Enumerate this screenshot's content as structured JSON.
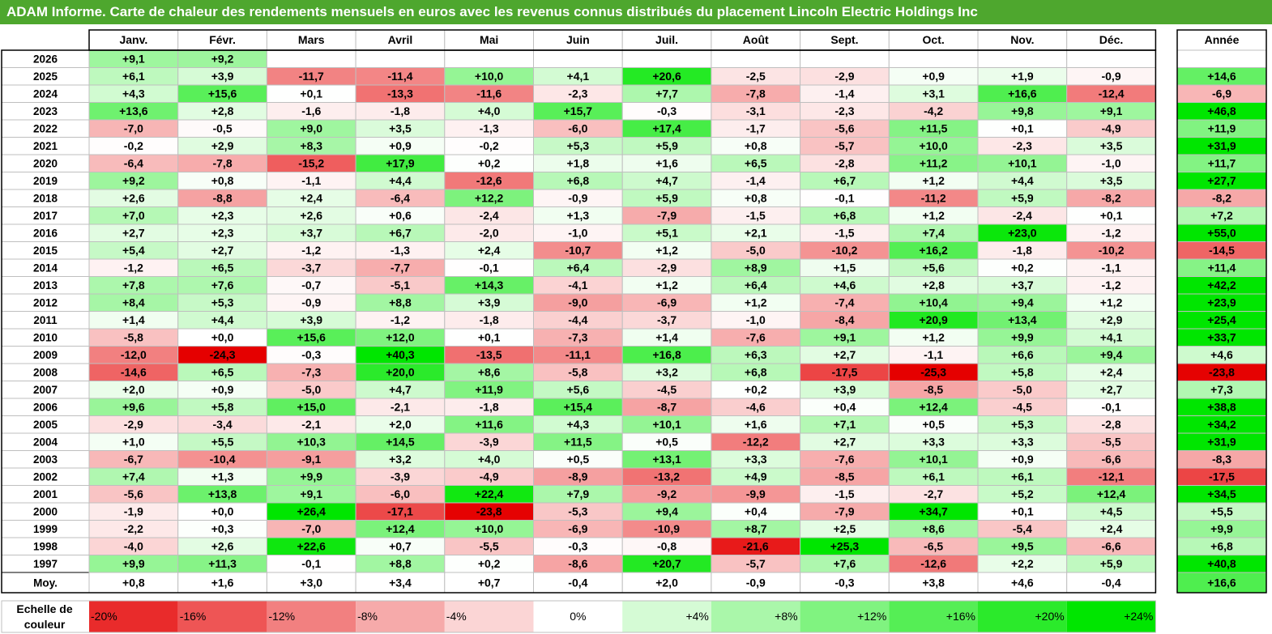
{
  "title": "ADAM Informe. Carte de chaleur des rendements mensuels en euros avec les revenus connus distribués du placement Lincoln Electric Holdings Inc",
  "chart_data": {
    "type": "heatmap",
    "months": [
      "Janv.",
      "Févr.",
      "Mars",
      "Avril",
      "Mai",
      "Juin",
      "Juil.",
      "Août",
      "Sept.",
      "Oct.",
      "Nov.",
      "Déc."
    ],
    "year_header": "Année",
    "rows": [
      {
        "year": "2026",
        "values": [
          "+9,1",
          "+9,2",
          null,
          null,
          null,
          null,
          null,
          null,
          null,
          null,
          null,
          null
        ],
        "annual": null
      },
      {
        "year": "2025",
        "values": [
          "+6,1",
          "+3,9",
          "-11,7",
          "-11,4",
          "+10,0",
          "+4,1",
          "+20,6",
          "-2,5",
          "-2,9",
          "+0,9",
          "+1,9",
          "-0,9"
        ],
        "annual": "+14,6"
      },
      {
        "year": "2024",
        "values": [
          "+4,3",
          "+15,6",
          "+0,1",
          "-13,3",
          "-11,6",
          "-2,3",
          "+7,7",
          "-7,8",
          "-1,4",
          "+3,1",
          "+16,6",
          "-12,4"
        ],
        "annual": "-6,9"
      },
      {
        "year": "2023",
        "values": [
          "+13,6",
          "+2,8",
          "-1,6",
          "-1,8",
          "+4,0",
          "+15,7",
          "-0,3",
          "-3,1",
          "-2,3",
          "-4,2",
          "+9,8",
          "+9,1"
        ],
        "annual": "+46,8"
      },
      {
        "year": "2022",
        "values": [
          "-7,0",
          "-0,5",
          "+9,0",
          "+3,5",
          "-1,3",
          "-6,0",
          "+17,4",
          "-1,7",
          "-5,6",
          "+11,5",
          "+0,1",
          "-4,9"
        ],
        "annual": "+11,9"
      },
      {
        "year": "2021",
        "values": [
          "-0,2",
          "+2,9",
          "+8,3",
          "+0,9",
          "-0,2",
          "+5,3",
          "+5,9",
          "+0,8",
          "-5,7",
          "+10,0",
          "-2,3",
          "+3,5"
        ],
        "annual": "+31,9"
      },
      {
        "year": "2020",
        "values": [
          "-6,4",
          "-7,8",
          "-15,2",
          "+17,9",
          "+0,2",
          "+1,8",
          "+1,6",
          "+6,5",
          "-2,8",
          "+11,2",
          "+10,1",
          "-1,0"
        ],
        "annual": "+11,7"
      },
      {
        "year": "2019",
        "values": [
          "+9,2",
          "+0,8",
          "-1,1",
          "+4,4",
          "-12,6",
          "+6,8",
          "+4,7",
          "-1,4",
          "+6,7",
          "+1,2",
          "+4,4",
          "+3,5"
        ],
        "annual": "+27,7"
      },
      {
        "year": "2018",
        "values": [
          "+2,6",
          "-8,8",
          "+2,4",
          "-6,4",
          "+12,2",
          "-0,9",
          "+5,9",
          "+0,8",
          "-0,1",
          "-11,2",
          "+5,9",
          "-8,2"
        ],
        "annual": "-8,2"
      },
      {
        "year": "2017",
        "values": [
          "+7,0",
          "+2,3",
          "+2,6",
          "+0,6",
          "-2,4",
          "+1,3",
          "-7,9",
          "-1,5",
          "+6,8",
          "+1,2",
          "-2,4",
          "+0,1"
        ],
        "annual": "+7,2"
      },
      {
        "year": "2016",
        "values": [
          "+2,7",
          "+2,3",
          "+3,7",
          "+6,7",
          "-2,0",
          "-1,0",
          "+5,1",
          "+2,1",
          "-1,5",
          "+7,4",
          "+23,0",
          "-1,2"
        ],
        "annual": "+55,0"
      },
      {
        "year": "2015",
        "values": [
          "+5,4",
          "+2,7",
          "-1,2",
          "-1,3",
          "+2,4",
          "-10,7",
          "+1,2",
          "-5,0",
          "-10,2",
          "+16,2",
          "-1,8",
          "-10,2"
        ],
        "annual": "-14,5"
      },
      {
        "year": "2014",
        "values": [
          "-1,2",
          "+6,5",
          "-3,7",
          "-7,7",
          "-0,1",
          "+6,4",
          "-2,9",
          "+8,9",
          "+1,5",
          "+5,6",
          "+0,2",
          "-1,1"
        ],
        "annual": "+11,4"
      },
      {
        "year": "2013",
        "values": [
          "+7,8",
          "+7,6",
          "-0,7",
          "-5,1",
          "+14,3",
          "-4,1",
          "+1,2",
          "+6,4",
          "+4,6",
          "+2,8",
          "+3,7",
          "-1,2"
        ],
        "annual": "+42,2"
      },
      {
        "year": "2012",
        "values": [
          "+8,4",
          "+5,3",
          "-0,9",
          "+8,8",
          "+3,9",
          "-9,0",
          "-6,9",
          "+1,2",
          "-7,4",
          "+10,4",
          "+9,4",
          "+1,2"
        ],
        "annual": "+23,9"
      },
      {
        "year": "2011",
        "values": [
          "+1,4",
          "+4,4",
          "+3,9",
          "-1,2",
          "-1,8",
          "-4,4",
          "-3,7",
          "-1,0",
          "-8,4",
          "+20,9",
          "+13,4",
          "+2,9"
        ],
        "annual": "+25,4"
      },
      {
        "year": "2010",
        "values": [
          "-5,8",
          "+0,0",
          "+15,6",
          "+12,0",
          "+0,1",
          "-7,3",
          "+1,4",
          "-7,6",
          "+9,1",
          "+1,2",
          "+9,9",
          "+4,1"
        ],
        "annual": "+33,7"
      },
      {
        "year": "2009",
        "values": [
          "-12,0",
          "-24,3",
          "-0,3",
          "+40,3",
          "-13,5",
          "-11,1",
          "+16,8",
          "+6,3",
          "+2,7",
          "-1,1",
          "+6,6",
          "+9,4"
        ],
        "annual": "+4,6"
      },
      {
        "year": "2008",
        "values": [
          "-14,6",
          "+6,5",
          "-7,3",
          "+20,0",
          "+8,6",
          "-5,8",
          "+3,2",
          "+6,8",
          "-17,5",
          "-25,3",
          "+5,8",
          "+2,4"
        ],
        "annual": "-23,8"
      },
      {
        "year": "2007",
        "values": [
          "+2,0",
          "+0,9",
          "-5,0",
          "+4,7",
          "+11,9",
          "+5,6",
          "-4,5",
          "+0,2",
          "+3,9",
          "-8,5",
          "-5,0",
          "+2,7"
        ],
        "annual": "+7,3"
      },
      {
        "year": "2006",
        "values": [
          "+9,6",
          "+5,8",
          "+15,0",
          "-2,1",
          "-1,8",
          "+15,4",
          "-8,7",
          "-4,6",
          "+0,4",
          "+12,4",
          "-4,5",
          "-0,1"
        ],
        "annual": "+38,8"
      },
      {
        "year": "2005",
        "values": [
          "-2,9",
          "-3,4",
          "-2,1",
          "+2,0",
          "+11,6",
          "+4,3",
          "+10,1",
          "+1,6",
          "+7,1",
          "+0,5",
          "+5,3",
          "-2,8"
        ],
        "annual": "+34,2"
      },
      {
        "year": "2004",
        "values": [
          "+1,0",
          "+5,5",
          "+10,3",
          "+14,5",
          "-3,9",
          "+11,5",
          "+0,5",
          "-12,2",
          "+2,7",
          "+3,3",
          "+3,3",
          "-5,5"
        ],
        "annual": "+31,9"
      },
      {
        "year": "2003",
        "values": [
          "-6,7",
          "-10,4",
          "-9,1",
          "+3,2",
          "+4,0",
          "+0,5",
          "+13,1",
          "+3,3",
          "-7,6",
          "+10,1",
          "+0,9",
          "-6,6"
        ],
        "annual": "-8,3"
      },
      {
        "year": "2002",
        "values": [
          "+7,4",
          "+1,3",
          "+9,9",
          "-3,9",
          "-4,9",
          "-8,9",
          "-13,2",
          "+4,9",
          "-8,5",
          "+6,1",
          "+6,1",
          "-12,1"
        ],
        "annual": "-17,5"
      },
      {
        "year": "2001",
        "values": [
          "-5,6",
          "+13,8",
          "+9,1",
          "-6,0",
          "+22,4",
          "+7,9",
          "-9,2",
          "-9,9",
          "-1,5",
          "-2,7",
          "+5,2",
          "+12,4"
        ],
        "annual": "+34,5"
      },
      {
        "year": "2000",
        "values": [
          "-1,9",
          "+0,0",
          "+26,4",
          "-17,1",
          "-23,8",
          "-5,3",
          "+9,4",
          "+0,4",
          "-7,9",
          "+34,7",
          "+0,1",
          "+4,5"
        ],
        "annual": "+5,5"
      },
      {
        "year": "1999",
        "values": [
          "-2,2",
          "+0,3",
          "-7,0",
          "+12,4",
          "+10,0",
          "-6,9",
          "-10,9",
          "+8,7",
          "+2,5",
          "+8,6",
          "-5,4",
          "+2,4"
        ],
        "annual": "+9,9"
      },
      {
        "year": "1998",
        "values": [
          "-4,0",
          "+2,6",
          "+22,6",
          "+0,7",
          "-5,5",
          "-0,3",
          "-0,8",
          "-21,6",
          "+25,3",
          "-6,5",
          "+9,5",
          "-6,6"
        ],
        "annual": "+6,8"
      },
      {
        "year": "1997",
        "values": [
          "+9,9",
          "+11,3",
          "-0,1",
          "+8,8",
          "+0,2",
          "-8,6",
          "+20,7",
          "-5,7",
          "+7,6",
          "-12,6",
          "+2,2",
          "+5,9"
        ],
        "annual": "+40,8"
      }
    ],
    "average": {
      "label": "Moy.",
      "values": [
        "+0,8",
        "+1,6",
        "+3,0",
        "+3,4",
        "+0,7",
        "-0,4",
        "+2,0",
        "-0,9",
        "-0,3",
        "+3,8",
        "+4,6",
        "-0,4"
      ],
      "annual": "+16,6"
    },
    "color_scale": {
      "title_line1": "Echelle de",
      "title_line2": "couleur",
      "labels": [
        "-20%",
        "-16%",
        "-12%",
        "-8%",
        "-4%",
        "0%",
        "+4%",
        "+8%",
        "+12%",
        "+16%",
        "+20%",
        "+24%"
      ],
      "steps": [
        -20,
        -16,
        -12,
        -8,
        -4,
        0,
        4,
        8,
        12,
        16,
        20,
        24
      ]
    },
    "colors": {
      "negative_max": "#e50000",
      "neutral": "#ffffff",
      "positive_max": "#00e600",
      "title_bar": "#4ea72e"
    }
  }
}
